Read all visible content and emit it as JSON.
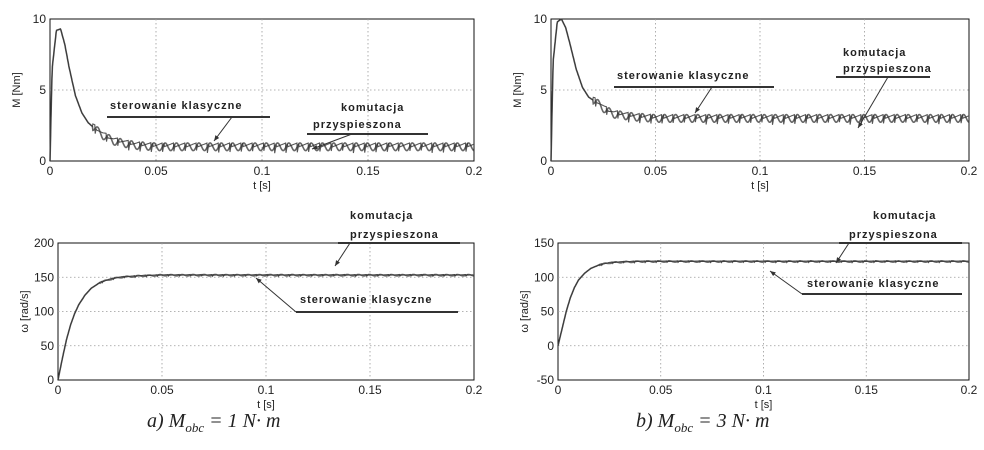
{
  "chart_data": [
    {
      "type": "line",
      "id": "a-torque",
      "xlabel": "t [s]",
      "ylabel": "M [Nm]",
      "xlim": [
        0,
        0.2
      ],
      "ylim": [
        0,
        10
      ],
      "xticks": [
        "0",
        "0.05",
        "0.1",
        "0.15",
        "0.2"
      ],
      "yticks": [
        "0",
        "5",
        "10"
      ],
      "grid": true,
      "series": [
        {
          "x": [
            0,
            0.001,
            0.003,
            0.005,
            0.007,
            0.009,
            0.012,
            0.015,
            0.018,
            0.021,
            0.025,
            0.03,
            0.04,
            0.05,
            0.1,
            0.15,
            0.2
          ],
          "values": [
            0,
            6.5,
            9.2,
            9.3,
            8.2,
            6.6,
            4.6,
            3.4,
            2.7,
            2.3,
            1.8,
            1.4,
            1.1,
            1.0,
            1.0,
            1.0,
            1.0
          ]
        }
      ],
      "annotations": [
        {
          "text": "sterowanie klasyczne",
          "x": 0.075,
          "y": 1.3
        },
        {
          "text": "komutacja",
          "x": 0.125,
          "y": 0.9
        },
        {
          "text": "przyspieszona",
          "x": 0.125,
          "y": 0.9
        }
      ]
    },
    {
      "type": "line",
      "id": "b-torque",
      "xlabel": "t [s]",
      "ylabel": "M [Nm]",
      "xlim": [
        0,
        0.2
      ],
      "ylim": [
        0,
        10
      ],
      "xticks": [
        "0",
        "0.05",
        "0.1",
        "0.15",
        "0.2"
      ],
      "yticks": [
        "0",
        "5",
        "10"
      ],
      "grid": true,
      "series": [
        {
          "x": [
            0,
            0.001,
            0.003,
            0.005,
            0.007,
            0.009,
            0.012,
            0.015,
            0.018,
            0.022,
            0.026,
            0.03,
            0.04,
            0.05,
            0.1,
            0.15,
            0.2
          ],
          "values": [
            0,
            7.0,
            9.8,
            10.0,
            9.4,
            8.3,
            6.5,
            5.2,
            4.5,
            4.1,
            3.6,
            3.3,
            3.1,
            3.0,
            3.0,
            3.0,
            3.0
          ]
        }
      ],
      "annotations": [
        {
          "text": "sterowanie klasyczne",
          "x": 0.075,
          "y": 3.3
        },
        {
          "text": "komutacja",
          "x": 0.15,
          "y": 2.8
        },
        {
          "text": "przyspieszona",
          "x": 0.15,
          "y": 2.8
        }
      ]
    },
    {
      "type": "line",
      "id": "a-speed",
      "xlabel": "t [s]",
      "ylabel": "ω [rad/s]",
      "xlim": [
        0,
        0.2
      ],
      "ylim": [
        0,
        200
      ],
      "xticks": [
        "0",
        "0.05",
        "0.1",
        "0.15",
        "0.2"
      ],
      "yticks": [
        "0",
        "50",
        "100",
        "150",
        "200"
      ],
      "grid": true,
      "series": [
        {
          "x": [
            0,
            0.002,
            0.004,
            0.006,
            0.008,
            0.01,
            0.013,
            0.016,
            0.02,
            0.025,
            0.03,
            0.04,
            0.05,
            0.1,
            0.15,
            0.2
          ],
          "values": [
            0,
            30,
            58,
            80,
            97,
            110,
            124,
            134,
            142,
            147,
            150,
            152,
            153,
            153,
            153,
            153
          ]
        }
      ],
      "annotations": [
        {
          "text": "komutacja",
          "x": 0.14,
          "y": 156
        },
        {
          "text": "przyspieszona",
          "x": 0.14,
          "y": 156
        },
        {
          "text": "sterowanie klasyczne",
          "x": 0.09,
          "y": 150
        }
      ]
    },
    {
      "type": "line",
      "id": "b-speed",
      "xlabel": "t [s]",
      "ylabel": "ω [rad/s]",
      "xlim": [
        0,
        0.2
      ],
      "ylim": [
        -50,
        150
      ],
      "xticks": [
        "0",
        "0.05",
        "0.1",
        "0.15",
        "0.2"
      ],
      "yticks": [
        "-50",
        "0",
        "50",
        "100",
        "150"
      ],
      "grid": true,
      "series": [
        {
          "x": [
            0,
            0.002,
            0.004,
            0.006,
            0.008,
            0.01,
            0.013,
            0.016,
            0.02,
            0.025,
            0.03,
            0.04,
            0.05,
            0.1,
            0.15,
            0.2
          ],
          "values": [
            0,
            25,
            50,
            70,
            85,
            96,
            106,
            113,
            118,
            121,
            122,
            123,
            123,
            123,
            123,
            123
          ]
        }
      ],
      "annotations": [
        {
          "text": "komutacja",
          "x": 0.14,
          "y": 124
        },
        {
          "text": "przyspieszona",
          "x": 0.14,
          "y": 124
        },
        {
          "text": "sterowanie klasyczne",
          "x": 0.105,
          "y": 120
        }
      ]
    }
  ],
  "captions": {
    "a": {
      "prefix": "a) M",
      "sub": "obc",
      "suffix": " = 1 N·  m"
    },
    "b": {
      "prefix": "b) M",
      "sub": "obc",
      "suffix": " = 3 N·  m"
    }
  }
}
